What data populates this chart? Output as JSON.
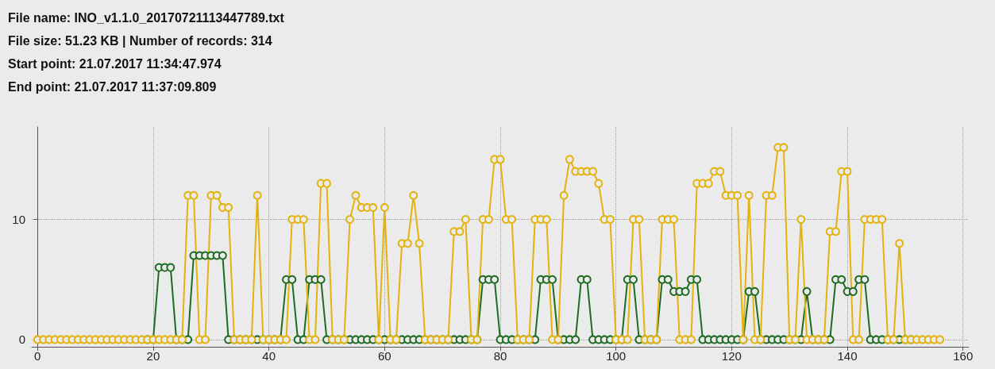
{
  "chart_data": {
    "type": "line",
    "title": "File name: INO_v1.1.0_20170721113447789.txt",
    "annotations": [
      "File size: 51.23 KB | Number of records: 314",
      "Start point: 21.07.2017 11:34:47.974",
      "End point: 21.07.2017 11:37:09.809"
    ],
    "x": [
      0,
      1,
      2,
      3,
      4,
      5,
      6,
      7,
      8,
      9,
      10,
      11,
      12,
      13,
      14,
      15,
      16,
      17,
      18,
      19,
      20,
      21,
      22,
      23,
      24,
      25,
      26,
      27,
      28,
      29,
      30,
      31,
      32,
      33,
      34,
      35,
      36,
      37,
      38,
      39,
      40,
      41,
      42,
      43,
      44,
      45,
      46,
      47,
      48,
      49,
      50,
      51,
      52,
      53,
      54,
      55,
      56,
      57,
      58,
      59,
      60,
      61,
      62,
      63,
      64,
      65,
      66,
      67,
      68,
      69,
      70,
      71,
      72,
      73,
      74,
      75,
      76,
      77,
      78,
      79,
      80,
      81,
      82,
      83,
      84,
      85,
      86,
      87,
      88,
      89,
      90,
      91,
      92,
      93,
      94,
      95,
      96,
      97,
      98,
      99,
      100,
      101,
      102,
      103,
      104,
      105,
      106,
      107,
      108,
      109,
      110,
      111,
      112,
      113,
      114,
      115,
      116,
      117,
      118,
      119,
      120,
      121,
      122,
      123,
      124,
      125,
      126,
      127,
      128,
      129,
      130,
      131,
      132,
      133,
      134,
      135,
      136,
      137,
      138,
      139,
      140,
      141,
      142,
      143,
      144,
      145,
      146,
      147,
      148,
      149,
      150,
      151,
      152,
      153,
      154,
      155,
      156
    ],
    "series": [
      {
        "color": "#1f6b23",
        "values": [
          null,
          null,
          null,
          null,
          null,
          null,
          null,
          null,
          null,
          null,
          null,
          null,
          null,
          null,
          null,
          null,
          null,
          null,
          null,
          0,
          0,
          6,
          6,
          6,
          0,
          0,
          0,
          7,
          7,
          7,
          7,
          7,
          7,
          0,
          0,
          0,
          0,
          0,
          0,
          0,
          0,
          0,
          0,
          5,
          5,
          0,
          0,
          5,
          5,
          5,
          0,
          0,
          0,
          0,
          0,
          0,
          0,
          0,
          0,
          0,
          0,
          0,
          0,
          0,
          0,
          0,
          0,
          0,
          0,
          0,
          0,
          0,
          0,
          0,
          0,
          0,
          0,
          5,
          5,
          5,
          0,
          0,
          0,
          0,
          0,
          0,
          0,
          5,
          5,
          5,
          0,
          0,
          0,
          0,
          5,
          5,
          0,
          0,
          0,
          0,
          0,
          0,
          5,
          5,
          0,
          0,
          0,
          0,
          5,
          5,
          4,
          4,
          4,
          5,
          5,
          0,
          0,
          0,
          0,
          0,
          0,
          0,
          0,
          4,
          4,
          0,
          0,
          0,
          0,
          0,
          0,
          0,
          0,
          4,
          0,
          0,
          0,
          0,
          5,
          5,
          4,
          4,
          5,
          5,
          0,
          0,
          0,
          0,
          0,
          0,
          0,
          0,
          null,
          null,
          null,
          null,
          null
        ]
      },
      {
        "color": "#e3b30c",
        "values": [
          0,
          0,
          0,
          0,
          0,
          0,
          0,
          0,
          0,
          0,
          0,
          0,
          0,
          0,
          0,
          0,
          0,
          0,
          0,
          0,
          0,
          0,
          0,
          0,
          0,
          0,
          12,
          12,
          0,
          0,
          12,
          12,
          11,
          11,
          0,
          0,
          0,
          0,
          12,
          0,
          0,
          0,
          0,
          0,
          10,
          10,
          10,
          0,
          0,
          13,
          13,
          0,
          0,
          0,
          10,
          12,
          11,
          11,
          11,
          0,
          11,
          0,
          0,
          8,
          8,
          12,
          8,
          0,
          0,
          0,
          0,
          0,
          9,
          9,
          10,
          0,
          0,
          10,
          10,
          15,
          15,
          10,
          10,
          0,
          0,
          0,
          10,
          10,
          10,
          0,
          0,
          12,
          15,
          14,
          14,
          14,
          14,
          13,
          10,
          10,
          0,
          0,
          0,
          10,
          10,
          0,
          0,
          0,
          10,
          10,
          10,
          0,
          0,
          0,
          13,
          13,
          13,
          14,
          14,
          12,
          12,
          12,
          0,
          12,
          0,
          0,
          12,
          12,
          16,
          16,
          0,
          0,
          10,
          0,
          0,
          0,
          0,
          9,
          9,
          14,
          14,
          0,
          0,
          10,
          10,
          10,
          10,
          0,
          0,
          8,
          0,
          0,
          0,
          0,
          0,
          0,
          0
        ]
      }
    ],
    "xlim": [
      -1,
      161
    ],
    "xticks": [
      0,
      20,
      40,
      60,
      80,
      100,
      120,
      140,
      160
    ],
    "ylim": [
      -0.6,
      17.7
    ],
    "yticks": [
      0,
      10
    ],
    "grid": true,
    "marker": "circle",
    "line_style": "solid"
  }
}
